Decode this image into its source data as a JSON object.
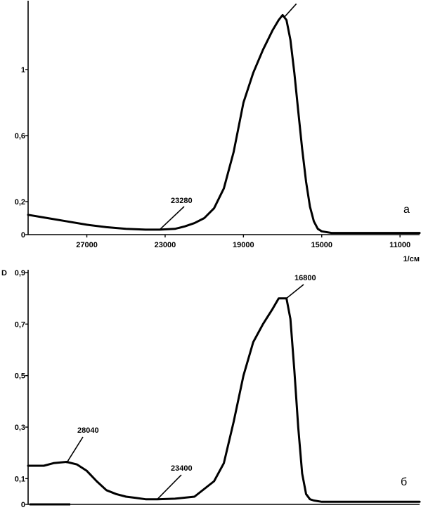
{
  "chart_data": [
    {
      "type": "line",
      "panel_label": "а",
      "xlabel": "1/см",
      "ylabel": "",
      "xlim": [
        30000,
        10000
      ],
      "ylim": [
        0,
        1.4
      ],
      "x_ticks": [
        {
          "value": 27000,
          "label": "27000"
        },
        {
          "value": 23000,
          "label": "23000"
        },
        {
          "value": 19000,
          "label": "19000"
        },
        {
          "value": 15000,
          "label": "15000"
        },
        {
          "value": 11000,
          "label": "11000"
        }
      ],
      "y_ticks": [
        {
          "value": 0,
          "label": "0"
        },
        {
          "value": 0.2,
          "label": "0,2"
        },
        {
          "value": 0.6,
          "label": "0,6"
        },
        {
          "value": 1,
          "label": "1"
        }
      ],
      "annotations": [
        {
          "text": "23280",
          "x": 23280,
          "y": 0.03
        }
      ],
      "series": [
        {
          "x": [
            30000,
            29000,
            28000,
            27000,
            26000,
            25000,
            24000,
            23280,
            22500,
            22000,
            21500,
            21000,
            20500,
            20000,
            19500,
            19000,
            18500,
            18000,
            17500,
            17200,
            17000,
            16800,
            16600,
            16400,
            16200,
            16000,
            15800,
            15600,
            15400,
            15200,
            15000,
            14500,
            14000,
            13000,
            12000,
            11000,
            10000
          ],
          "y": [
            0.12,
            0.1,
            0.08,
            0.06,
            0.045,
            0.035,
            0.03,
            0.03,
            0.035,
            0.05,
            0.07,
            0.1,
            0.16,
            0.28,
            0.5,
            0.8,
            0.98,
            1.12,
            1.24,
            1.3,
            1.33,
            1.3,
            1.18,
            0.98,
            0.75,
            0.52,
            0.32,
            0.17,
            0.08,
            0.035,
            0.02,
            0.01,
            0.01,
            0.01,
            0.01,
            0.01,
            0.01
          ]
        }
      ]
    },
    {
      "type": "line",
      "panel_label": "б",
      "xlabel": "",
      "ylabel": "D",
      "xlim": [
        30000,
        10000
      ],
      "ylim": [
        0,
        0.9
      ],
      "x_ticks": [],
      "y_ticks": [
        {
          "value": 0,
          "label": "0"
        },
        {
          "value": 0.1,
          "label": "0,1"
        },
        {
          "value": 0.3,
          "label": "0,3"
        },
        {
          "value": 0.5,
          "label": "0,5"
        },
        {
          "value": 0.7,
          "label": "0,7"
        },
        {
          "value": 0.9,
          "label": "0,9"
        }
      ],
      "annotations": [
        {
          "text": "28040",
          "x": 28040,
          "y": 0.16
        },
        {
          "text": "23400",
          "x": 23400,
          "y": 0.02
        },
        {
          "text": "16800",
          "x": 16800,
          "y": 0.8
        }
      ],
      "series": [
        {
          "x": [
            30000,
            29200,
            28700,
            28040,
            27500,
            27000,
            26500,
            26000,
            25500,
            25000,
            24500,
            24000,
            23400,
            22500,
            21500,
            20500,
            20000,
            19500,
            19000,
            18500,
            18000,
            17500,
            17200,
            16800,
            16600,
            16400,
            16200,
            16000,
            15800,
            15600,
            15400,
            15000,
            14500,
            14000,
            13000,
            12000,
            11000,
            10000
          ],
          "y": [
            0.15,
            0.15,
            0.16,
            0.165,
            0.155,
            0.13,
            0.09,
            0.055,
            0.04,
            0.03,
            0.025,
            0.02,
            0.02,
            0.022,
            0.03,
            0.09,
            0.16,
            0.32,
            0.5,
            0.63,
            0.7,
            0.76,
            0.8,
            0.8,
            0.72,
            0.52,
            0.3,
            0.12,
            0.04,
            0.02,
            0.015,
            0.01,
            0.01,
            0.01,
            0.01,
            0.01,
            0.01,
            0.01
          ]
        }
      ]
    }
  ]
}
